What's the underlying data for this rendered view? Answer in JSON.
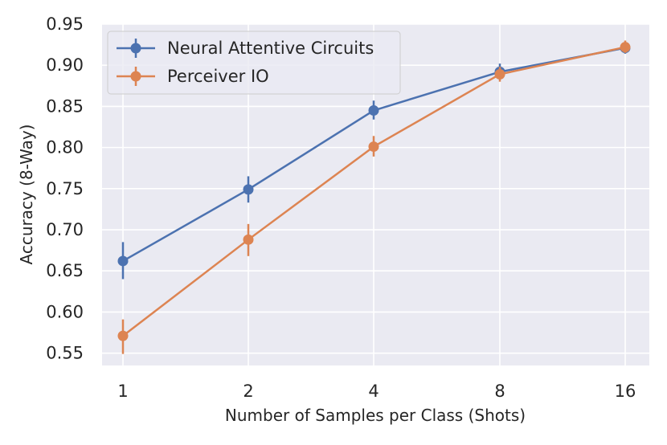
{
  "chart_data": {
    "type": "line",
    "title": "",
    "xlabel": "Number of Samples per Class (Shots)",
    "ylabel": "Accuracy (8-Way)",
    "categories": [
      "1",
      "2",
      "4",
      "8",
      "16"
    ],
    "ylim": [
      0.535,
      0.95
    ],
    "yticks": [
      "0.55",
      "0.60",
      "0.65",
      "0.70",
      "0.75",
      "0.80",
      "0.85",
      "0.90",
      "0.95"
    ],
    "grid": true,
    "legend_position": "top-left",
    "series": [
      {
        "name": "Neural Attentive Circuits",
        "color": "#4C72B0",
        "values": [
          0.662,
          0.749,
          0.845,
          0.892,
          0.921
        ],
        "err_low": [
          0.64,
          0.733,
          0.834,
          0.883,
          0.914
        ],
        "err_high": [
          0.685,
          0.765,
          0.857,
          0.902,
          0.927
        ]
      },
      {
        "name": "Perceiver IO",
        "color": "#DD8452",
        "values": [
          0.571,
          0.688,
          0.801,
          0.889,
          0.922
        ],
        "err_low": [
          0.549,
          0.668,
          0.789,
          0.88,
          0.915
        ],
        "err_high": [
          0.591,
          0.707,
          0.814,
          0.898,
          0.93
        ]
      }
    ]
  }
}
